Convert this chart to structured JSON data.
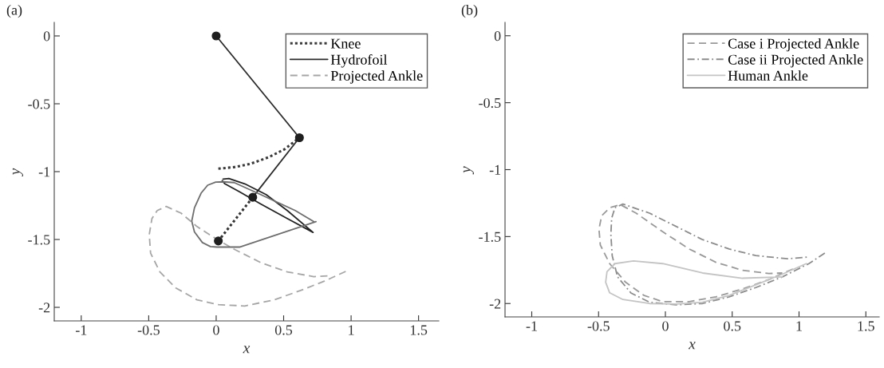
{
  "chart_data": [
    {
      "type": "line",
      "xlabel": "x",
      "ylabel": "y",
      "annotations": [
        "(a)"
      ],
      "xlim": [
        -1.2,
        1.65
      ],
      "ylim": [
        -2.1,
        0.1
      ],
      "xticks": [
        -1,
        -0.5,
        0,
        0.5,
        1,
        1.5
      ],
      "yticks": [
        0,
        -0.5,
        -1,
        -1.5,
        -2
      ],
      "legend": "top right",
      "grid": false,
      "series": [
        {
          "name": "Knee",
          "color": "#3a3a3a",
          "line_style": "dotted",
          "x": [
            0.016,
            0.134,
            0.252,
            0.389,
            0.507,
            0.617
          ],
          "values": [
            -0.978,
            -0.967,
            -0.943,
            -0.894,
            -0.835,
            -0.75
          ]
        },
        {
          "name": "Hydrofoil",
          "color": "#2b2b2b",
          "line_style": "solid",
          "x": [
            0,
            0.617,
            0.271
          ],
          "values": [
            0,
            -0.75,
            -1.189
          ]
        },
        {
          "name": "Projected Ankle",
          "color": "#a6a6a6",
          "line_style": "dashed",
          "x": [
            0.96,
            0.802,
            0.625,
            0.429,
            0.212,
            0.016,
            -0.142,
            -0.299,
            -0.417,
            -0.486,
            -0.496,
            -0.476,
            -0.437,
            -0.37,
            -0.26,
            -0.142,
            -0.004,
            0.134,
            0.33,
            0.527,
            0.724,
            0.842
          ],
          "values": [
            -1.735,
            -1.807,
            -1.876,
            -1.945,
            -1.99,
            -1.98,
            -1.945,
            -1.857,
            -1.739,
            -1.601,
            -1.464,
            -1.346,
            -1.287,
            -1.257,
            -1.306,
            -1.405,
            -1.493,
            -1.572,
            -1.67,
            -1.739,
            -1.774,
            -1.768
          ]
        },
        {
          "color": "#333333",
          "line_style": "dotted",
          "x": [
            0.271,
            0.016
          ],
          "values": [
            -1.189,
            -1.511
          ]
        },
        {
          "color": "#222222",
          "line_style": "solid",
          "x": [
            0.051,
            0.094,
            0.212,
            0.37,
            0.527,
            0.718,
            0.527,
            0.33,
            0.173,
            0.065,
            0.045
          ],
          "values": [
            -1.055,
            -1.051,
            -1.09,
            -1.169,
            -1.287,
            -1.448,
            -1.346,
            -1.238,
            -1.149,
            -1.09,
            -1.067
          ]
        },
        {
          "color": "#6e6e6e",
          "line_style": "solid",
          "x": [
            0.74,
            0.173,
            0.006,
            -0.043,
            -0.102,
            -0.161,
            -0.181,
            -0.161,
            -0.112,
            -0.063,
            -0.004,
            0.055,
            0.134,
            0.33,
            0.586,
            0.73
          ],
          "values": [
            -1.369,
            -1.556,
            -1.556,
            -1.552,
            -1.523,
            -1.444,
            -1.365,
            -1.267,
            -1.159,
            -1.1,
            -1.077,
            -1.075,
            -1.081,
            -1.169,
            -1.287,
            -1.372
          ]
        },
        {
          "type": "scatter",
          "color": "#1f1f1f",
          "marker": "circle",
          "x": [
            0,
            0.617,
            0.271,
            0.016
          ],
          "values": [
            0,
            -0.75,
            -1.189,
            -1.511
          ]
        }
      ]
    },
    {
      "type": "line",
      "xlabel": "x",
      "ylabel": "y",
      "annotations": [
        "(b)"
      ],
      "xlim": [
        -1.2,
        1.6
      ],
      "ylim": [
        -2.1,
        0.1
      ],
      "xticks": [
        -1,
        -0.5,
        0,
        0.5,
        1,
        1.5
      ],
      "yticks": [
        0,
        -0.5,
        -1,
        -1.5,
        -2
      ],
      "legend": "top right",
      "grid": false,
      "series": [
        {
          "name": "Case i Projected Ankle",
          "color": "#999999",
          "line_style": "dashed",
          "x": [
            0.954,
            0.775,
            0.577,
            0.378,
            0.179,
            -0.02,
            -0.159,
            -0.298,
            -0.417,
            -0.487,
            -0.497,
            -0.477,
            -0.417,
            -0.338,
            -0.219,
            -0.02,
            0.179,
            0.378,
            0.577,
            0.775,
            0.875
          ],
          "values": [
            -1.742,
            -1.821,
            -1.891,
            -1.95,
            -1.986,
            -1.986,
            -1.94,
            -1.841,
            -1.702,
            -1.563,
            -1.444,
            -1.345,
            -1.285,
            -1.261,
            -1.325,
            -1.464,
            -1.593,
            -1.692,
            -1.752,
            -1.776,
            -1.772
          ]
        },
        {
          "name": "Case ii Projected Ankle",
          "color": "#8c8c8c",
          "line_style": "dashdot",
          "x": [
            1.193,
            1.074,
            0.875,
            0.676,
            0.477,
            0.278,
            0.08,
            -0.119,
            -0.258,
            -0.358,
            -0.398,
            -0.408,
            -0.402,
            -0.378,
            -0.318,
            -0.119,
            0.08,
            0.278,
            0.477,
            0.676,
            0.915,
            1.074
          ],
          "values": [
            -1.623,
            -1.702,
            -1.801,
            -1.881,
            -1.95,
            -2.0,
            -2.01,
            -1.99,
            -1.921,
            -1.801,
            -1.643,
            -1.484,
            -1.364,
            -1.285,
            -1.257,
            -1.325,
            -1.424,
            -1.523,
            -1.593,
            -1.642,
            -1.666,
            -1.652
          ]
        },
        {
          "name": "Human Ankle",
          "color": "#c4c4c4",
          "line_style": "solid",
          "x": [
            1.054,
            0.875,
            0.676,
            0.477,
            0.278,
            0.08,
            -0.119,
            -0.318,
            -0.417,
            -0.447,
            -0.437,
            -0.378,
            -0.239,
            -0.02,
            0.278,
            0.577,
            0.875
          ],
          "values": [
            -1.702,
            -1.781,
            -1.861,
            -1.94,
            -1.99,
            -2.004,
            -2.0,
            -1.97,
            -1.92,
            -1.841,
            -1.762,
            -1.702,
            -1.682,
            -1.702,
            -1.772,
            -1.811,
            -1.801
          ]
        }
      ]
    }
  ]
}
